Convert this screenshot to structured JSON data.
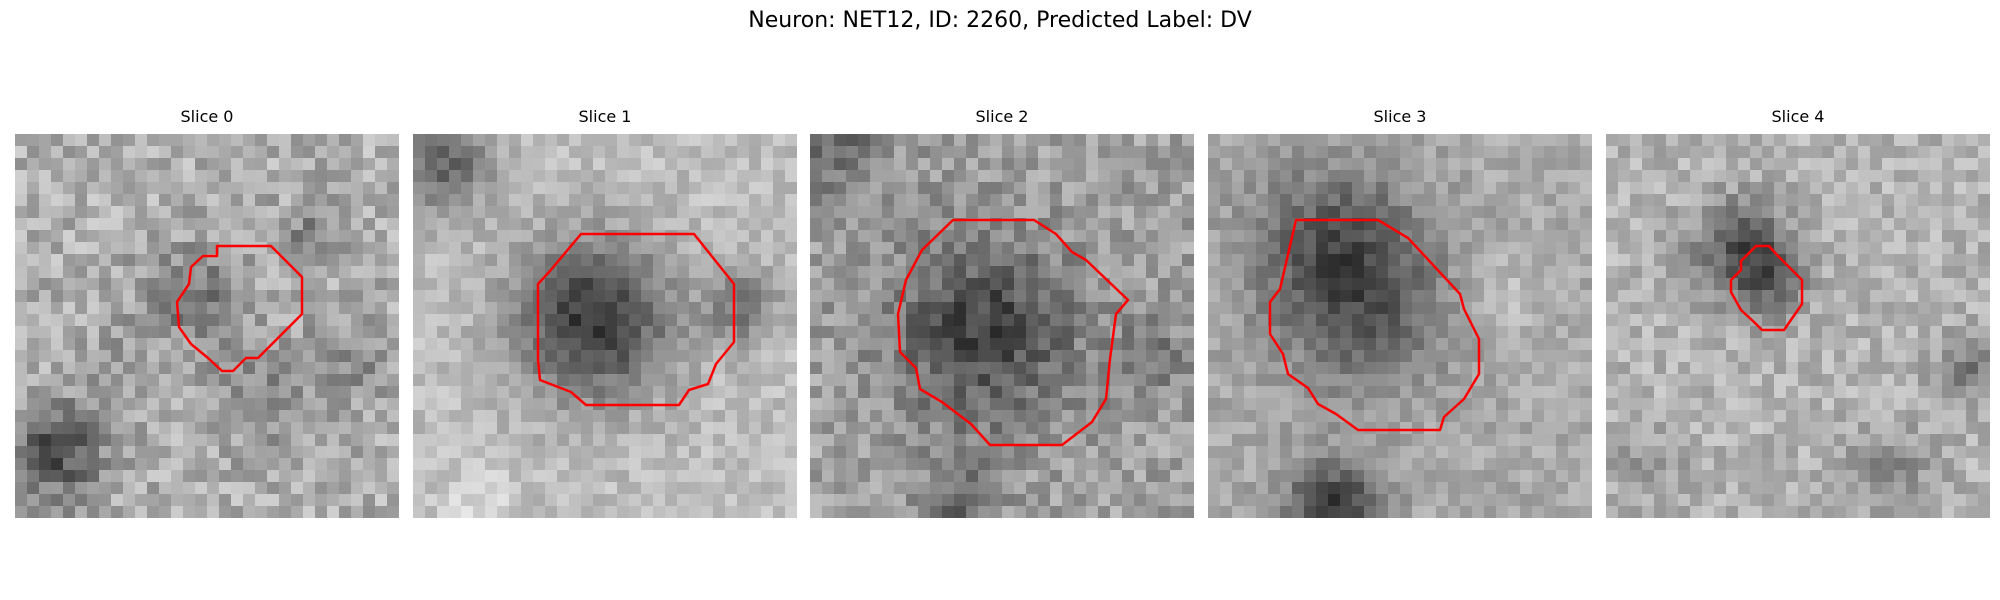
{
  "figure": {
    "title": "Neuron: NET12, ID: 2260, Predicted Label: DV"
  },
  "overlay_color": "#ff0000",
  "slices": [
    {
      "label": "Slice 0"
    },
    {
      "label": "Slice 1"
    },
    {
      "label": "Slice 2"
    },
    {
      "label": "Slice 3"
    },
    {
      "label": "Slice 4"
    }
  ]
}
